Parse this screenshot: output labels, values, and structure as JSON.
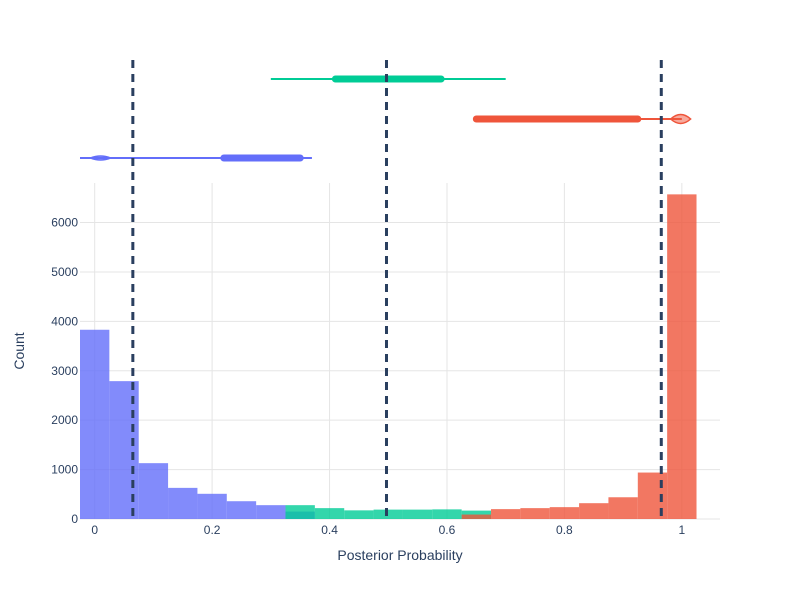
{
  "chart_data": {
    "type": "histogram",
    "xlabel": "Posterior Probability",
    "ylabel": "Count",
    "xlim": [
      -0.025,
      1.065
    ],
    "ylim": [
      0,
      6800
    ],
    "grid": true,
    "x_ticks": [
      {
        "value": 0,
        "label": "0"
      },
      {
        "value": 0.2,
        "label": "0.2"
      },
      {
        "value": 0.4,
        "label": "0.4"
      },
      {
        "value": 0.6,
        "label": "0.6"
      },
      {
        "value": 0.8,
        "label": "0.8"
      },
      {
        "value": 1,
        "label": "1"
      }
    ],
    "y_ticks": [
      {
        "value": 0,
        "label": "0"
      },
      {
        "value": 1000,
        "label": "1000"
      },
      {
        "value": 2000,
        "label": "2000"
      },
      {
        "value": 3000,
        "label": "3000"
      },
      {
        "value": 4000,
        "label": "4000"
      },
      {
        "value": 5000,
        "label": "5000"
      },
      {
        "value": 6000,
        "label": "6000"
      }
    ],
    "bin_width": 0.05,
    "series": [
      {
        "color": "#636efa",
        "bins": [
          {
            "x0": -0.025,
            "count": 3830
          },
          {
            "x0": 0.025,
            "count": 2790
          },
          {
            "x0": 0.075,
            "count": 1130
          },
          {
            "x0": 0.125,
            "count": 630
          },
          {
            "x0": 0.175,
            "count": 510
          },
          {
            "x0": 0.225,
            "count": 360
          },
          {
            "x0": 0.275,
            "count": 280
          },
          {
            "x0": 0.325,
            "count": 150
          }
        ],
        "violin": {
          "min": -0.025,
          "q1": 0.22,
          "q3": 0.35,
          "max": 0.37,
          "peak": 0.01
        }
      },
      {
        "color": "#00cc96",
        "bins": [
          {
            "x0": 0.325,
            "count": 280
          },
          {
            "x0": 0.375,
            "count": 220
          },
          {
            "x0": 0.425,
            "count": 175
          },
          {
            "x0": 0.475,
            "count": 190
          },
          {
            "x0": 0.525,
            "count": 190
          },
          {
            "x0": 0.575,
            "count": 195
          },
          {
            "x0": 0.625,
            "count": 170
          }
        ],
        "violin": {
          "min": 0.3,
          "q1": 0.41,
          "q3": 0.59,
          "max": 0.7,
          "peak": 0.5
        }
      },
      {
        "color": "#ef553b",
        "bins": [
          {
            "x0": 0.625,
            "count": 90
          },
          {
            "x0": 0.675,
            "count": 200
          },
          {
            "x0": 0.725,
            "count": 220
          },
          {
            "x0": 0.775,
            "count": 240
          },
          {
            "x0": 0.825,
            "count": 320
          },
          {
            "x0": 0.875,
            "count": 440
          },
          {
            "x0": 0.925,
            "count": 940
          },
          {
            "x0": 0.975,
            "count": 6570
          }
        ],
        "violin": {
          "min": 0.65,
          "q1": 0.65,
          "q3": 0.925,
          "max": 1.0,
          "peak": 0.998
        }
      }
    ],
    "reference_lines": [
      0.065,
      0.497,
      0.965
    ]
  }
}
